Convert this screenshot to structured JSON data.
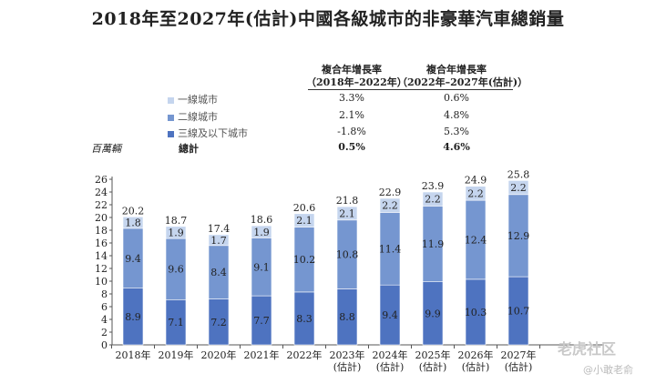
{
  "title": "2018年至2027年(估計)中國各級城市的非豪華汽車總銷量",
  "cagr_table": {
    "headers": [
      [
        "複合年增長率",
        "（2018年–2022年）"
      ],
      [
        "複合年增長率",
        "（2022年–2027年(估計)）"
      ]
    ],
    "rows": [
      {
        "label": "一線城市",
        "c1": "3.3%",
        "c2": "0.6%",
        "color": "#c5d5ee"
      },
      {
        "label": "二線城市",
        "c1": "2.1%",
        "c2": "4.8%",
        "color": "#7596d0"
      },
      {
        "label": "三線及以下城市",
        "c1": "-1.8%",
        "c2": "5.3%",
        "color": "#4e73c0"
      },
      {
        "label": "總計",
        "c1": "0.5%",
        "c2": "4.6%"
      }
    ]
  },
  "watermark": {
    "logo": "老虎社区",
    "user": "@小敢老俞"
  },
  "chart_data": {
    "type": "bar",
    "stacked": true,
    "unit": "百萬輛",
    "categories": [
      [
        "2018年"
      ],
      [
        "2019年"
      ],
      [
        "2020年"
      ],
      [
        "2021年"
      ],
      [
        "2022年"
      ],
      [
        "2023年",
        "(估計)"
      ],
      [
        "2024年",
        "(估計)"
      ],
      [
        "2025年",
        "(估計)"
      ],
      [
        "2026年",
        "(估計)"
      ],
      [
        "2027年",
        "(估計)"
      ]
    ],
    "series": [
      {
        "name": "三線及以下城市",
        "color": "#4e73c0",
        "values": [
          8.9,
          7.1,
          7.2,
          7.7,
          8.3,
          8.8,
          9.4,
          9.9,
          10.3,
          10.7
        ]
      },
      {
        "name": "二線城市",
        "color": "#7596d0",
        "values": [
          9.4,
          9.6,
          8.4,
          9.1,
          10.2,
          10.8,
          11.4,
          11.9,
          12.4,
          12.9
        ]
      },
      {
        "name": "一線城市",
        "color": "#c5d5ee",
        "values": [
          1.8,
          1.9,
          1.7,
          1.9,
          2.1,
          2.1,
          2.2,
          2.2,
          2.2,
          2.2
        ]
      }
    ],
    "totals": [
      20.2,
      18.7,
      17.4,
      18.6,
      20.6,
      21.8,
      22.9,
      23.9,
      24.9,
      25.8
    ],
    "ylim": [
      0,
      26
    ],
    "yticks": [
      0,
      2,
      4,
      6,
      8,
      10,
      12,
      14,
      16,
      18,
      20,
      22,
      24,
      26
    ],
    "legend": "top-left",
    "grid": false
  }
}
